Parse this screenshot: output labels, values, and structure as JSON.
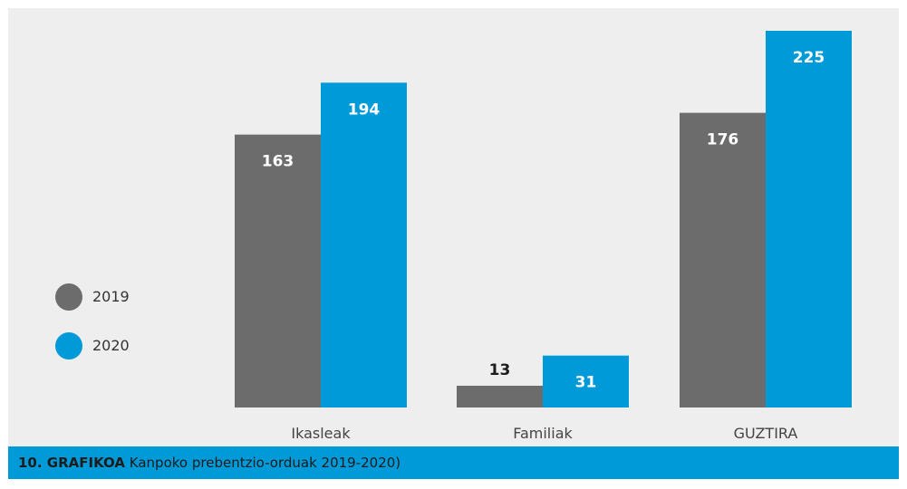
{
  "colors": {
    "panel_bg": "#eeeeee",
    "series_2019": "#6d6c6c",
    "series_2020": "#009ad8",
    "caption_bg": "#009ad8"
  },
  "legend": [
    {
      "label": "2019",
      "color": "#6d6c6c"
    },
    {
      "label": "2020",
      "color": "#009ad8"
    }
  ],
  "caption": {
    "number": "10. GRAFIKOA",
    "text": " Kanpoko prebentzio-orduak 2019-2020)"
  },
  "chart_data": {
    "type": "bar",
    "categories": [
      "Ikasleak",
      "Familiak",
      "GUZTIRA"
    ],
    "series": [
      {
        "name": "2019",
        "color": "#6d6c6c",
        "values": [
          163,
          13,
          176
        ]
      },
      {
        "name": "2020",
        "color": "#009ad8",
        "values": [
          194,
          31,
          225
        ]
      }
    ],
    "ylim": [
      0,
      225
    ],
    "grid": false,
    "legend_position": "left",
    "title": "",
    "xlabel": "",
    "ylabel": ""
  }
}
